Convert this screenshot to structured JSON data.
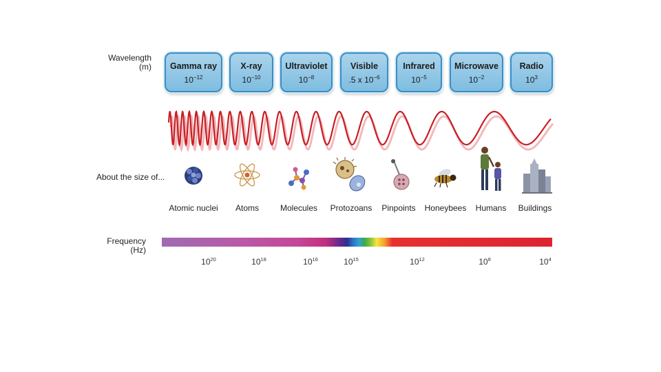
{
  "wavelength_label": "Wavelength",
  "wavelength_unit": "(m)",
  "bands": [
    {
      "name": "Gamma ray",
      "base": "10",
      "exp": "−12"
    },
    {
      "name": "X-ray",
      "base": "10",
      "exp": "−10"
    },
    {
      "name": "Ultraviolet",
      "base": "10",
      "exp": "−8"
    },
    {
      "name": "Visible",
      "base": ".5 x 10",
      "exp": "−6"
    },
    {
      "name": "Infrared",
      "base": "10",
      "exp": "−5"
    },
    {
      "name": "Microwave",
      "base": "10",
      "exp": "−2"
    },
    {
      "name": "Radio",
      "base": "10",
      "exp": "3"
    }
  ],
  "size_label": "About the size of...",
  "size_items": [
    "Atomic nuclei",
    "Atoms",
    "Molecules",
    "Protozoans",
    "Pinpoints",
    "Honeybees",
    "Humans",
    "Buildings"
  ],
  "frequency_label": "Frequency",
  "frequency_unit": "(Hz)",
  "frequency_ticks": [
    {
      "base": "10",
      "exp": "20"
    },
    {
      "base": "10",
      "exp": "18"
    },
    {
      "base": "10",
      "exp": "16"
    },
    {
      "base": "10",
      "exp": "15"
    },
    {
      "base": "10",
      "exp": "12"
    },
    {
      "base": "10",
      "exp": "8"
    },
    {
      "base": "10",
      "exp": "4"
    }
  ],
  "colors": {
    "wave": "#c81e24",
    "band_border": "#3b8cc2",
    "band_fill": "#8fc6e6"
  }
}
